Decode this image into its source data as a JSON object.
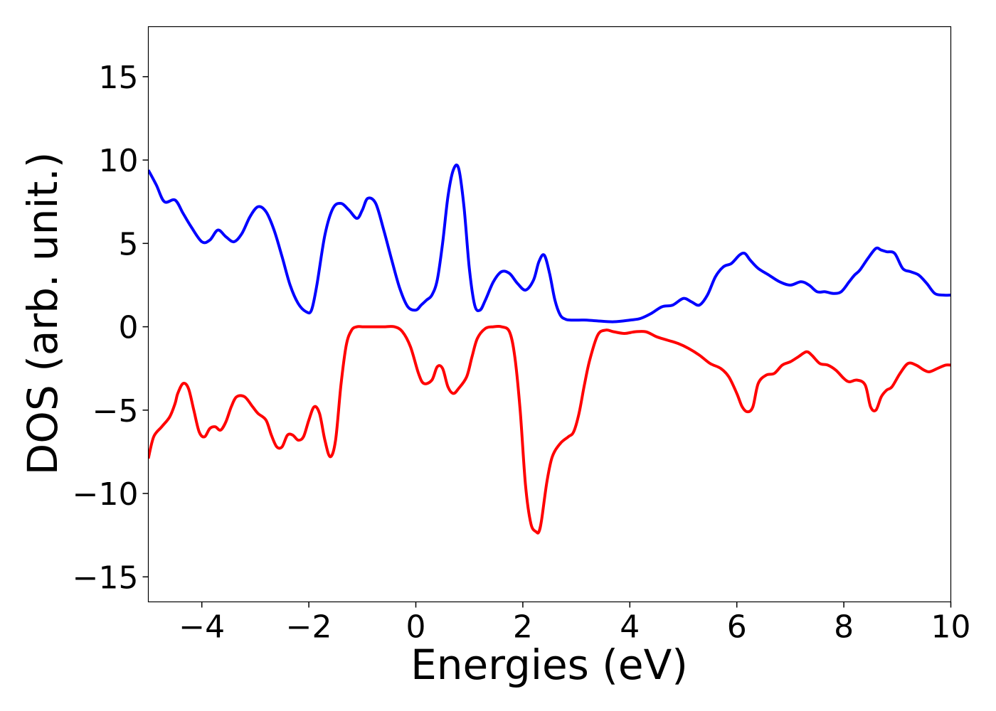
{
  "chart_data": {
    "type": "line",
    "title": "",
    "xlabel": "Energies (eV)",
    "ylabel": "DOS (arb. unit.)",
    "xlim": [
      -5,
      10
    ],
    "ylim": [
      -16.5,
      18
    ],
    "x_ticks": [
      -4,
      -2,
      0,
      2,
      4,
      6,
      8,
      10
    ],
    "x_tick_labels": [
      "−4",
      "−2",
      "0",
      "2",
      "4",
      "6",
      "8",
      "10"
    ],
    "y_ticks": [
      -15,
      -10,
      -5,
      0,
      5,
      10,
      15
    ],
    "y_tick_labels": [
      "−15",
      "−10",
      "−5",
      "0",
      "5",
      "10",
      "15"
    ],
    "grid": false,
    "series": [
      {
        "color": "#0000ff",
        "x": [
          -5.0,
          -4.85,
          -4.7,
          -4.5,
          -4.35,
          -4.2,
          -4.0,
          -3.85,
          -3.7,
          -3.55,
          -3.4,
          -3.25,
          -3.1,
          -2.95,
          -2.8,
          -2.65,
          -2.5,
          -2.35,
          -2.2,
          -2.05,
          -1.95,
          -1.85,
          -1.7,
          -1.55,
          -1.4,
          -1.25,
          -1.1,
          -1.0,
          -0.9,
          -0.75,
          -0.6,
          -0.45,
          -0.3,
          -0.15,
          0.0,
          0.1,
          0.2,
          0.3,
          0.4,
          0.5,
          0.6,
          0.7,
          0.8,
          0.9,
          1.0,
          1.1,
          1.2,
          1.3,
          1.45,
          1.6,
          1.75,
          1.9,
          2.05,
          2.2,
          2.3,
          2.4,
          2.5,
          2.6,
          2.7,
          2.8,
          2.9,
          3.05,
          3.2,
          3.4,
          3.7,
          4.0,
          4.2,
          4.4,
          4.6,
          4.8,
          5.0,
          5.15,
          5.3,
          5.45,
          5.6,
          5.75,
          5.9,
          6.05,
          6.15,
          6.25,
          6.4,
          6.6,
          6.8,
          7.0,
          7.2,
          7.35,
          7.5,
          7.65,
          7.8,
          7.95,
          8.1,
          8.2,
          8.3,
          8.45,
          8.6,
          8.7,
          8.8,
          8.95,
          9.1,
          9.25,
          9.4,
          9.55,
          9.7,
          9.85,
          10.0
        ],
        "y": [
          9.4,
          8.5,
          7.5,
          7.6,
          6.8,
          6.0,
          5.1,
          5.2,
          5.8,
          5.4,
          5.1,
          5.6,
          6.6,
          7.2,
          6.9,
          5.8,
          4.2,
          2.5,
          1.4,
          0.9,
          1.0,
          2.5,
          5.5,
          7.1,
          7.4,
          7.0,
          6.5,
          7.0,
          7.7,
          7.4,
          5.8,
          4.0,
          2.3,
          1.2,
          1.0,
          1.3,
          1.6,
          1.9,
          2.8,
          5.0,
          7.8,
          9.4,
          9.5,
          7.2,
          3.5,
          1.3,
          1.0,
          1.6,
          2.7,
          3.3,
          3.2,
          2.6,
          2.2,
          2.8,
          3.9,
          4.3,
          3.2,
          1.6,
          0.7,
          0.45,
          0.4,
          0.4,
          0.4,
          0.35,
          0.3,
          0.4,
          0.5,
          0.8,
          1.2,
          1.3,
          1.7,
          1.5,
          1.3,
          1.9,
          3.0,
          3.6,
          3.8,
          4.3,
          4.4,
          4.0,
          3.5,
          3.1,
          2.7,
          2.5,
          2.7,
          2.5,
          2.1,
          2.1,
          2.0,
          2.1,
          2.7,
          3.1,
          3.4,
          4.1,
          4.7,
          4.6,
          4.5,
          4.4,
          3.5,
          3.3,
          3.1,
          2.6,
          2.0,
          1.9,
          1.9
        ]
      },
      {
        "color": "#ff0000",
        "x": [
          -5.0,
          -4.9,
          -4.75,
          -4.6,
          -4.5,
          -4.45,
          -4.35,
          -4.25,
          -4.15,
          -4.05,
          -3.95,
          -3.85,
          -3.75,
          -3.65,
          -3.55,
          -3.45,
          -3.35,
          -3.2,
          -3.05,
          -2.95,
          -2.8,
          -2.7,
          -2.6,
          -2.5,
          -2.4,
          -2.3,
          -2.2,
          -2.1,
          -2.0,
          -1.9,
          -1.8,
          -1.7,
          -1.6,
          -1.5,
          -1.4,
          -1.3,
          -1.2,
          -1.1,
          -1.0,
          -0.9,
          -0.8,
          -0.6,
          -0.4,
          -0.25,
          -0.1,
          0.05,
          0.15,
          0.3,
          0.4,
          0.5,
          0.6,
          0.7,
          0.8,
          0.95,
          1.05,
          1.15,
          1.3,
          1.45,
          1.6,
          1.75,
          1.85,
          1.95,
          2.05,
          2.15,
          2.25,
          2.3,
          2.35,
          2.45,
          2.55,
          2.7,
          2.85,
          2.95,
          3.05,
          3.15,
          3.25,
          3.4,
          3.55,
          3.7,
          3.9,
          4.1,
          4.3,
          4.5,
          4.7,
          4.9,
          5.1,
          5.3,
          5.5,
          5.7,
          5.85,
          6.0,
          6.1,
          6.2,
          6.3,
          6.4,
          6.55,
          6.7,
          6.85,
          7.0,
          7.15,
          7.3,
          7.4,
          7.55,
          7.7,
          7.85,
          8.0,
          8.1,
          8.25,
          8.4,
          8.5,
          8.6,
          8.7,
          8.8,
          8.9,
          9.05,
          9.2,
          9.35,
          9.5,
          9.6,
          9.75,
          9.9,
          10.0
        ],
        "y": [
          -7.9,
          -6.6,
          -6.0,
          -5.4,
          -4.6,
          -4.0,
          -3.4,
          -3.7,
          -5.0,
          -6.3,
          -6.6,
          -6.1,
          -6.0,
          -6.2,
          -5.7,
          -4.8,
          -4.2,
          -4.2,
          -4.8,
          -5.2,
          -5.6,
          -6.5,
          -7.2,
          -7.2,
          -6.5,
          -6.5,
          -6.8,
          -6.6,
          -5.6,
          -4.8,
          -5.2,
          -6.8,
          -7.8,
          -6.8,
          -3.5,
          -1.1,
          -0.2,
          0.0,
          0.0,
          0.0,
          0.0,
          0.0,
          0.0,
          -0.3,
          -1.2,
          -2.8,
          -3.4,
          -3.2,
          -2.4,
          -2.5,
          -3.6,
          -4.0,
          -3.7,
          -3.0,
          -1.8,
          -0.7,
          -0.1,
          0.0,
          0.0,
          -0.3,
          -1.8,
          -5.0,
          -9.5,
          -11.8,
          -12.3,
          -12.3,
          -11.6,
          -9.3,
          -7.8,
          -7.0,
          -6.6,
          -6.3,
          -5.2,
          -3.5,
          -2.0,
          -0.5,
          -0.2,
          -0.3,
          -0.4,
          -0.3,
          -0.3,
          -0.6,
          -0.8,
          -1.0,
          -1.3,
          -1.7,
          -2.2,
          -2.5,
          -3.0,
          -4.0,
          -4.8,
          -5.1,
          -4.8,
          -3.4,
          -2.9,
          -2.8,
          -2.3,
          -2.1,
          -1.8,
          -1.5,
          -1.7,
          -2.2,
          -2.3,
          -2.6,
          -3.1,
          -3.3,
          -3.2,
          -3.5,
          -4.8,
          -5.0,
          -4.2,
          -3.8,
          -3.6,
          -2.8,
          -2.2,
          -2.3,
          -2.6,
          -2.7,
          -2.5,
          -2.3,
          -2.3
        ]
      }
    ]
  }
}
